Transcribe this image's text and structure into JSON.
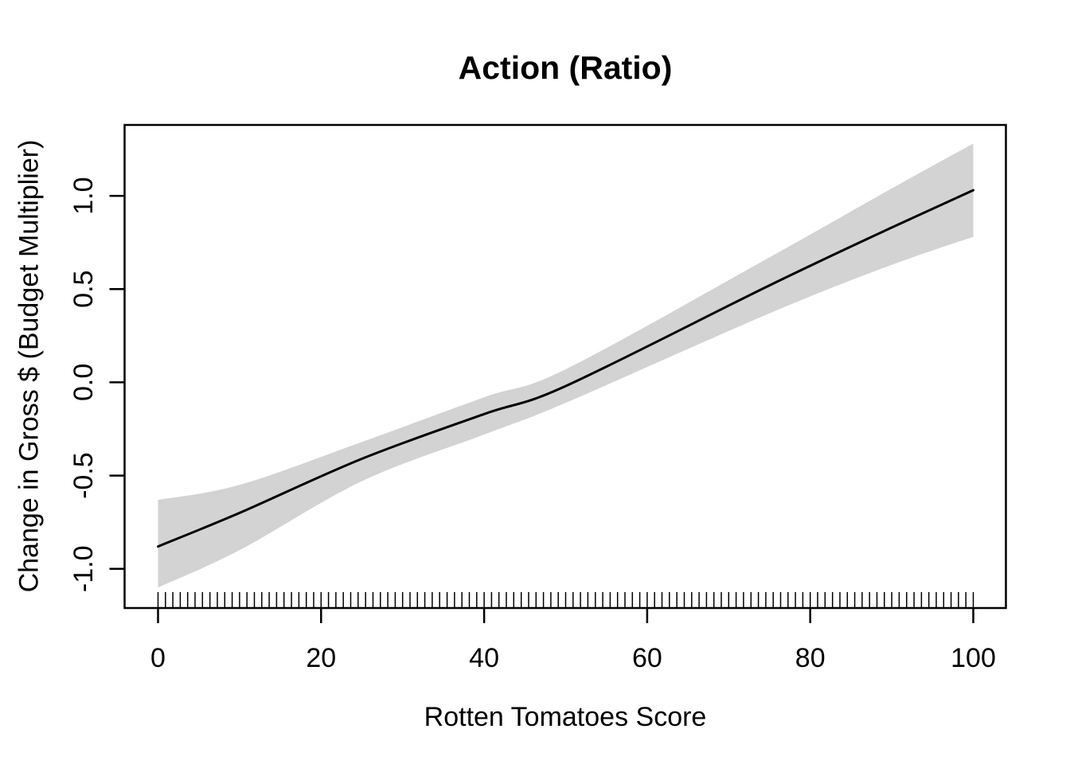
{
  "title": "Action (Ratio)",
  "x_axis_title": "Rotten Tomatoes Score",
  "y_axis_title": "Change in Gross $ (Budget Multiplier)",
  "chart_data": {
    "type": "line",
    "title": "Action (Ratio)",
    "xlabel": "Rotten Tomatoes Score",
    "ylabel": "Change in Gross $ (Budget Multiplier)",
    "x_domain": [
      -4.1,
      104.0
    ],
    "y_domain": [
      -1.21,
      1.38
    ],
    "x_ticks": [
      0,
      20,
      40,
      60,
      80,
      100
    ],
    "x_tick_labels": [
      "0",
      "20",
      "40",
      "60",
      "80",
      "100"
    ],
    "y_ticks": [
      -1.0,
      -0.5,
      0.0,
      0.5,
      1.0
    ],
    "y_tick_labels": [
      "-1.0",
      "-0.5",
      "0.0",
      "0.5",
      "1.0"
    ],
    "grid": false,
    "legend": false,
    "line_color": "#000000",
    "band_color": "#d3d3d3",
    "axis_color": "#000000",
    "series": [
      {
        "name": "gam_fit",
        "x": [
          0,
          10,
          25,
          40,
          50,
          75,
          90,
          100
        ],
        "y": [
          -0.88,
          -0.7,
          -0.41,
          -0.17,
          -0.02,
          0.52,
          0.83,
          1.03
        ]
      },
      {
        "name": "ci_upper",
        "x": [
          0,
          10,
          25,
          40,
          50,
          75,
          90,
          100
        ],
        "y": [
          -0.63,
          -0.55,
          -0.32,
          -0.08,
          0.07,
          0.67,
          1.04,
          1.28
        ]
      },
      {
        "name": "ci_lower",
        "x": [
          0,
          10,
          25,
          40,
          50,
          75,
          90,
          100
        ],
        "y": [
          -1.1,
          -0.9,
          -0.53,
          -0.28,
          -0.11,
          0.37,
          0.63,
          0.78
        ]
      }
    ],
    "rug": {
      "start": 0,
      "end": 100,
      "count": 111
    }
  }
}
